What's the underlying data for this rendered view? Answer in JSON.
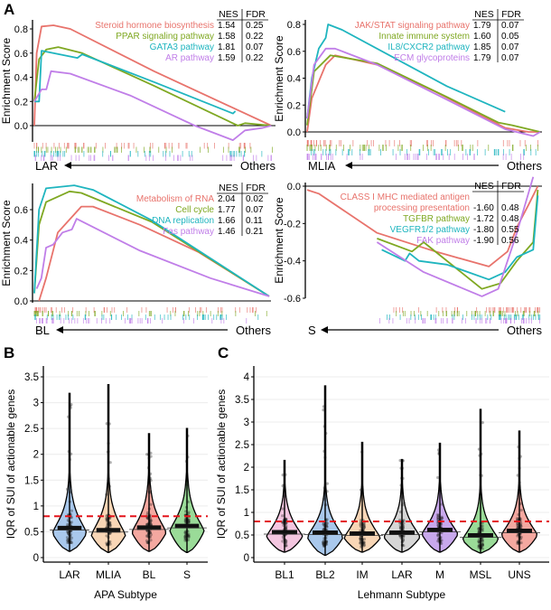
{
  "colors": {
    "red": "#e8736c",
    "green": "#7fa822",
    "cyan": "#1fb5bf",
    "purple": "#c07ee8",
    "threshold": "#e3141b"
  },
  "chart_data": [
    {
      "panel": "A",
      "type": "line",
      "ylabel": "Enrichment Score",
      "left_label": "LAR",
      "right_label": "Others",
      "table_header": [
        "NES",
        "FDR"
      ],
      "yticks": [
        "0.0",
        "0.2",
        "0.4",
        "0.6",
        "0.8"
      ],
      "ylim": [
        -0.15,
        0.85
      ],
      "series": [
        {
          "name": "Steroid hormone biosynthesis",
          "color": "red",
          "nes": "1.54",
          "fdr": "0.25",
          "points": [
            [
              0,
              0
            ],
            [
              0.01,
              0.6
            ],
            [
              0.03,
              0.82
            ],
            [
              0.08,
              0.83
            ],
            [
              0.15,
              0.8
            ],
            [
              0.5,
              0.45
            ],
            [
              0.99,
              0
            ]
          ]
        },
        {
          "name": "PPAR signaling pathway",
          "color": "green",
          "nes": "1.58",
          "fdr": "0.22",
          "points": [
            [
              0,
              0.2
            ],
            [
              0.02,
              0.55
            ],
            [
              0.05,
              0.63
            ],
            [
              0.1,
              0.65
            ],
            [
              0.2,
              0.6
            ],
            [
              0.5,
              0.33
            ],
            [
              0.85,
              0
            ],
            [
              0.88,
              0.02
            ],
            [
              0.99,
              0
            ]
          ]
        },
        {
          "name": "GATA3 pathway",
          "color": "cyan",
          "nes": "1.81",
          "fdr": "0.07",
          "points": [
            [
              0,
              0.2
            ],
            [
              0.02,
              0.2
            ],
            [
              0.03,
              0.62
            ],
            [
              0.18,
              0.56
            ],
            [
              0.2,
              0.59
            ],
            [
              0.5,
              0.36
            ],
            [
              0.83,
              0.1
            ],
            [
              0.84,
              0.12
            ]
          ]
        },
        {
          "name": "AR pathway",
          "color": "purple",
          "nes": "1.59",
          "fdr": "0.22",
          "points": [
            [
              0,
              0.2
            ],
            [
              0.03,
              0.3
            ],
            [
              0.05,
              0.3
            ],
            [
              0.07,
              0.45
            ],
            [
              0.15,
              0.43
            ],
            [
              0.4,
              0.25
            ],
            [
              0.67,
              0
            ],
            [
              0.83,
              -0.12
            ],
            [
              0.88,
              -0.04
            ],
            [
              0.95,
              -0.02
            ],
            [
              0.99,
              0
            ]
          ]
        }
      ]
    },
    {
      "panel": "",
      "type": "line",
      "ylabel": "Enrichment Score",
      "left_label": "MLIA",
      "right_label": "Others",
      "table_header": [
        "NES",
        "FDR"
      ],
      "yticks": [
        "0.0",
        "0.2",
        "0.4",
        "0.6",
        "0.8"
      ],
      "ylim": [
        -0.05,
        0.85
      ],
      "series": [
        {
          "name": "JAK/STAT signaling pathway",
          "color": "red",
          "nes": "1.79",
          "fdr": "0.07",
          "points": [
            [
              0,
              0
            ],
            [
              0.02,
              0.25
            ],
            [
              0.08,
              0.5
            ],
            [
              0.12,
              0.57
            ],
            [
              0.3,
              0.5
            ],
            [
              0.55,
              0.3
            ],
            [
              0.85,
              0.03
            ],
            [
              0.95,
              0
            ],
            [
              1,
              0
            ]
          ]
        },
        {
          "name": "Innate immune system",
          "color": "green",
          "nes": "1.60",
          "fdr": "0.05",
          "points": [
            [
              0,
              0.05
            ],
            [
              0.03,
              0.45
            ],
            [
              0.1,
              0.57
            ],
            [
              0.3,
              0.51
            ],
            [
              0.6,
              0.26
            ],
            [
              0.82,
              0.07
            ],
            [
              0.88,
              0.05
            ],
            [
              1,
              0
            ]
          ]
        },
        {
          "name": "IL8/CXCR2 pathway",
          "color": "cyan",
          "nes": "1.85",
          "fdr": "0.07",
          "points": [
            [
              0,
              0.1
            ],
            [
              0.02,
              0.4
            ],
            [
              0.05,
              0.62
            ],
            [
              0.08,
              0.7
            ],
            [
              0.09,
              0.8
            ],
            [
              0.15,
              0.76
            ],
            [
              0.6,
              0.34
            ],
            [
              0.85,
              0.15
            ]
          ]
        },
        {
          "name": "ECM glycoproteins",
          "color": "purple",
          "nes": "1.79",
          "fdr": "0.07",
          "points": [
            [
              0,
              0.1
            ],
            [
              0.03,
              0.5
            ],
            [
              0.08,
              0.62
            ],
            [
              0.12,
              0.62
            ],
            [
              0.3,
              0.5
            ],
            [
              0.6,
              0.24
            ],
            [
              0.85,
              0.02
            ],
            [
              0.97,
              -0.03
            ],
            [
              1,
              0
            ]
          ]
        }
      ]
    },
    {
      "panel": "",
      "type": "line",
      "ylabel": "Enrichment Score",
      "left_label": "BL",
      "right_label": "Others",
      "table_header": [
        "NES",
        "FDR"
      ],
      "yticks": [
        "0.0",
        "0.2",
        "0.4",
        "0.6"
      ],
      "ylim": [
        0,
        0.78
      ],
      "series": [
        {
          "name": "Metabolism of RNA",
          "color": "red",
          "nes": "2.04",
          "fdr": "0.02",
          "points": [
            [
              0.02,
              0
            ],
            [
              0.05,
              0.15
            ],
            [
              0.1,
              0.45
            ],
            [
              0.2,
              0.62
            ],
            [
              0.25,
              0.62
            ],
            [
              0.45,
              0.5
            ],
            [
              0.7,
              0.32
            ],
            [
              1,
              0.03
            ]
          ]
        },
        {
          "name": "Cell cycle",
          "color": "green",
          "nes": "1.77",
          "fdr": "0.07",
          "points": [
            [
              0,
              0.05
            ],
            [
              0.02,
              0.5
            ],
            [
              0.05,
              0.65
            ],
            [
              0.15,
              0.72
            ],
            [
              0.2,
              0.71
            ],
            [
              0.5,
              0.52
            ],
            [
              1,
              0.03
            ]
          ]
        },
        {
          "name": "DNA replication",
          "color": "cyan",
          "nes": "1.66",
          "fdr": "0.11",
          "points": [
            [
              0,
              0.05
            ],
            [
              0.02,
              0.6
            ],
            [
              0.05,
              0.74
            ],
            [
              0.17,
              0.76
            ],
            [
              0.25,
              0.73
            ],
            [
              0.5,
              0.53
            ],
            [
              1,
              0.03
            ]
          ]
        },
        {
          "name": "Fas pathway",
          "color": "purple",
          "nes": "1.46",
          "fdr": "0.21",
          "points": [
            [
              0.01,
              0.08
            ],
            [
              0.03,
              0.15
            ],
            [
              0.05,
              0.35
            ],
            [
              0.08,
              0.37
            ],
            [
              0.12,
              0.45
            ],
            [
              0.16,
              0.47
            ],
            [
              0.18,
              0.54
            ],
            [
              0.45,
              0.33
            ],
            [
              0.75,
              0.15
            ],
            [
              1,
              0.03
            ]
          ]
        }
      ]
    },
    {
      "panel": "",
      "type": "line",
      "ylabel": "Enrichment Score",
      "left_label": "S",
      "right_label": "Others",
      "table_header": [
        "NES",
        "FDR"
      ],
      "yticks": [
        "0.0",
        "-0.2",
        "-0.4",
        "-0.6"
      ],
      "ylim": [
        -0.62,
        0.02
      ],
      "series": [
        {
          "name": "CLASS I MHC  mediated antigen processing presentation",
          "label_lines": [
            "CLASS I MHC  mediated antigen",
            "processing presentation"
          ],
          "color": "red",
          "nes": "-1.60",
          "fdr": "0.48",
          "points": [
            [
              0,
              -0.02
            ],
            [
              0.05,
              -0.04
            ],
            [
              0.3,
              -0.25
            ],
            [
              0.55,
              -0.35
            ],
            [
              0.78,
              -0.43
            ],
            [
              0.86,
              -0.35
            ],
            [
              0.9,
              -0.22
            ],
            [
              0.95,
              -0.1
            ],
            [
              0.99,
              0
            ]
          ]
        },
        {
          "name": "TGFBR pathway",
          "color": "green",
          "nes": "-1.72",
          "fdr": "0.48",
          "points": [
            [
              0.3,
              -0.28
            ],
            [
              0.45,
              -0.35
            ],
            [
              0.5,
              -0.3
            ],
            [
              0.75,
              -0.55
            ],
            [
              0.83,
              -0.52
            ],
            [
              0.9,
              -0.4
            ],
            [
              0.97,
              -0.3
            ],
            [
              0.99,
              -0.02
            ]
          ]
        },
        {
          "name": "VEGFR1/2 pathway",
          "color": "cyan",
          "nes": "-1.80",
          "fdr": "0.55",
          "points": [
            [
              0.32,
              -0.34
            ],
            [
              0.42,
              -0.4
            ],
            [
              0.44,
              -0.36
            ],
            [
              0.48,
              -0.4
            ],
            [
              0.6,
              -0.42
            ],
            [
              0.78,
              -0.5
            ],
            [
              0.85,
              -0.46
            ],
            [
              0.9,
              -0.38
            ],
            [
              0.97,
              -0.34
            ],
            [
              0.99,
              -0.05
            ]
          ]
        },
        {
          "name": "FAK pathway",
          "color": "purple",
          "nes": "-1.90",
          "fdr": "0.56",
          "points": [
            [
              0.3,
              -0.3
            ],
            [
              0.5,
              -0.46
            ],
            [
              0.75,
              -0.59
            ],
            [
              0.82,
              -0.55
            ],
            [
              0.9,
              -0.25
            ],
            [
              0.97,
              0.05
            ]
          ]
        }
      ]
    },
    {
      "panel": "B",
      "type": "violin",
      "xlabel": "APA Subtype",
      "ylabel": "IQR of SUI of actionable genes",
      "yticks": [
        "0",
        "0.5",
        "1",
        "1.5",
        "2",
        "2.5",
        "3",
        "3.5"
      ],
      "ylim": [
        0,
        3.5
      ],
      "threshold": 0.8,
      "grid": true,
      "categories": [
        "LAR",
        "MLIA",
        "BL",
        "S"
      ],
      "medians": [
        0.57,
        0.53,
        0.58,
        0.61
      ],
      "max": [
        3.18,
        3.35,
        2.4,
        2.5
      ],
      "min": [
        0.12,
        0.1,
        0.12,
        0.1
      ],
      "fills": [
        "#a9c8ec",
        "#f8d6b6",
        "#f4a8a0",
        "#9adb98"
      ]
    },
    {
      "panel": "C",
      "type": "violin",
      "xlabel": "Lehmann Subtype",
      "ylabel": "IQR of SUI of actionable genes",
      "yticks": [
        "0",
        "0.5",
        "1",
        "1.5",
        "2",
        "2.5",
        "3",
        "3.5",
        "4"
      ],
      "ylim": [
        0,
        4
      ],
      "threshold": 0.8,
      "grid": true,
      "categories": [
        "BL1",
        "BL2",
        "IM",
        "LAR",
        "M",
        "MSL",
        "UNS"
      ],
      "medians": [
        0.56,
        0.55,
        0.53,
        0.55,
        0.61,
        0.49,
        0.59
      ],
      "max": [
        2.15,
        3.8,
        2.55,
        2.17,
        2.53,
        3.28,
        2.8
      ],
      "min": [
        0.12,
        0.05,
        0.12,
        0.12,
        0.12,
        0.1,
        0.12
      ],
      "fills": [
        "#f4c6e0",
        "#a9c8ec",
        "#f8d6b6",
        "#d6d6d6",
        "#c8a8ec",
        "#9adb98",
        "#f4a8a0"
      ]
    }
  ]
}
